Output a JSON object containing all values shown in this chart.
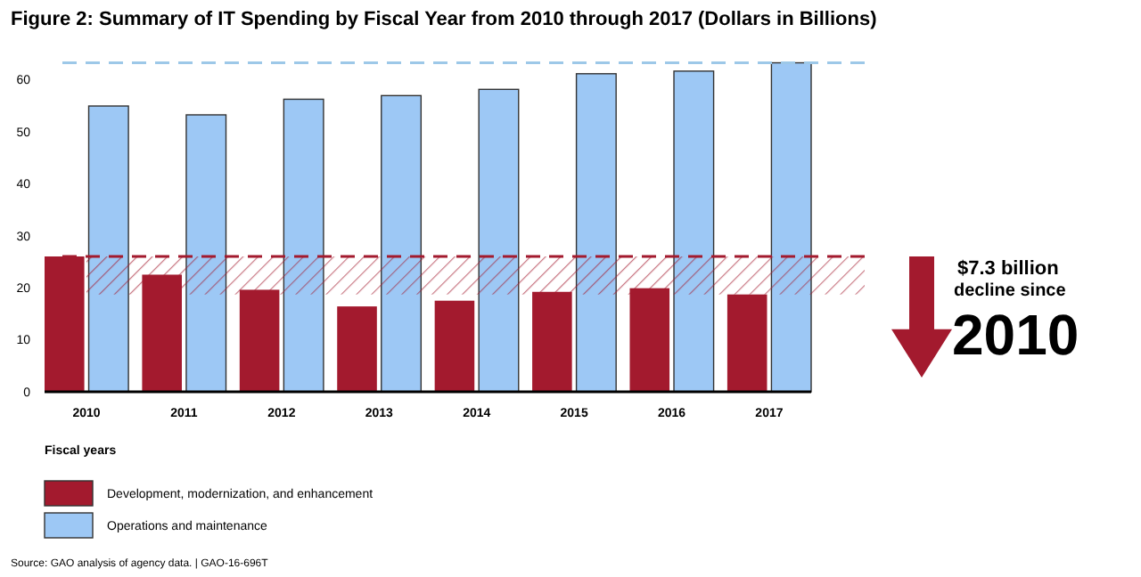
{
  "chart_data": {
    "type": "bar",
    "title": "Figure 2: Summary of IT Spending by Fiscal Year from 2010 through 2017 (Dollars in Billions)",
    "xlabel": "Fiscal years",
    "categories": [
      "2010",
      "2011",
      "2012",
      "2013",
      "2014",
      "2015",
      "2016",
      "2017"
    ],
    "series": [
      {
        "name": "Development, modernization, and enhancement",
        "color": "#a31a2e",
        "values": [
          26.0,
          22.5,
          19.6,
          16.4,
          17.5,
          19.2,
          19.9,
          18.7
        ]
      },
      {
        "name": "Operations and maintenance",
        "color": "#9dc8f5",
        "values": [
          54.9,
          53.2,
          56.2,
          56.9,
          58.1,
          61.1,
          61.6,
          63.2
        ]
      }
    ],
    "ylim": [
      0,
      65
    ],
    "yticks": [
      0,
      10,
      20,
      30,
      40,
      50,
      60
    ],
    "legend": "bottom left",
    "ref_lines": [
      {
        "axis": "y",
        "value": 63.2,
        "color": "#9dc8e8",
        "line_style": "dashed"
      },
      {
        "axis": "y",
        "value": 26.0,
        "color": "#a31a2e",
        "line_style": "dashed"
      }
    ],
    "bands": [
      {
        "axis": "y",
        "from": 18.7,
        "to": 26.0,
        "color": "#a31a2e"
      }
    ],
    "annotations": [
      "$7.3 billion",
      "decline since",
      "2010",
      "Source: GAO analysis of agency data.  |  GAO-16-696T"
    ]
  }
}
